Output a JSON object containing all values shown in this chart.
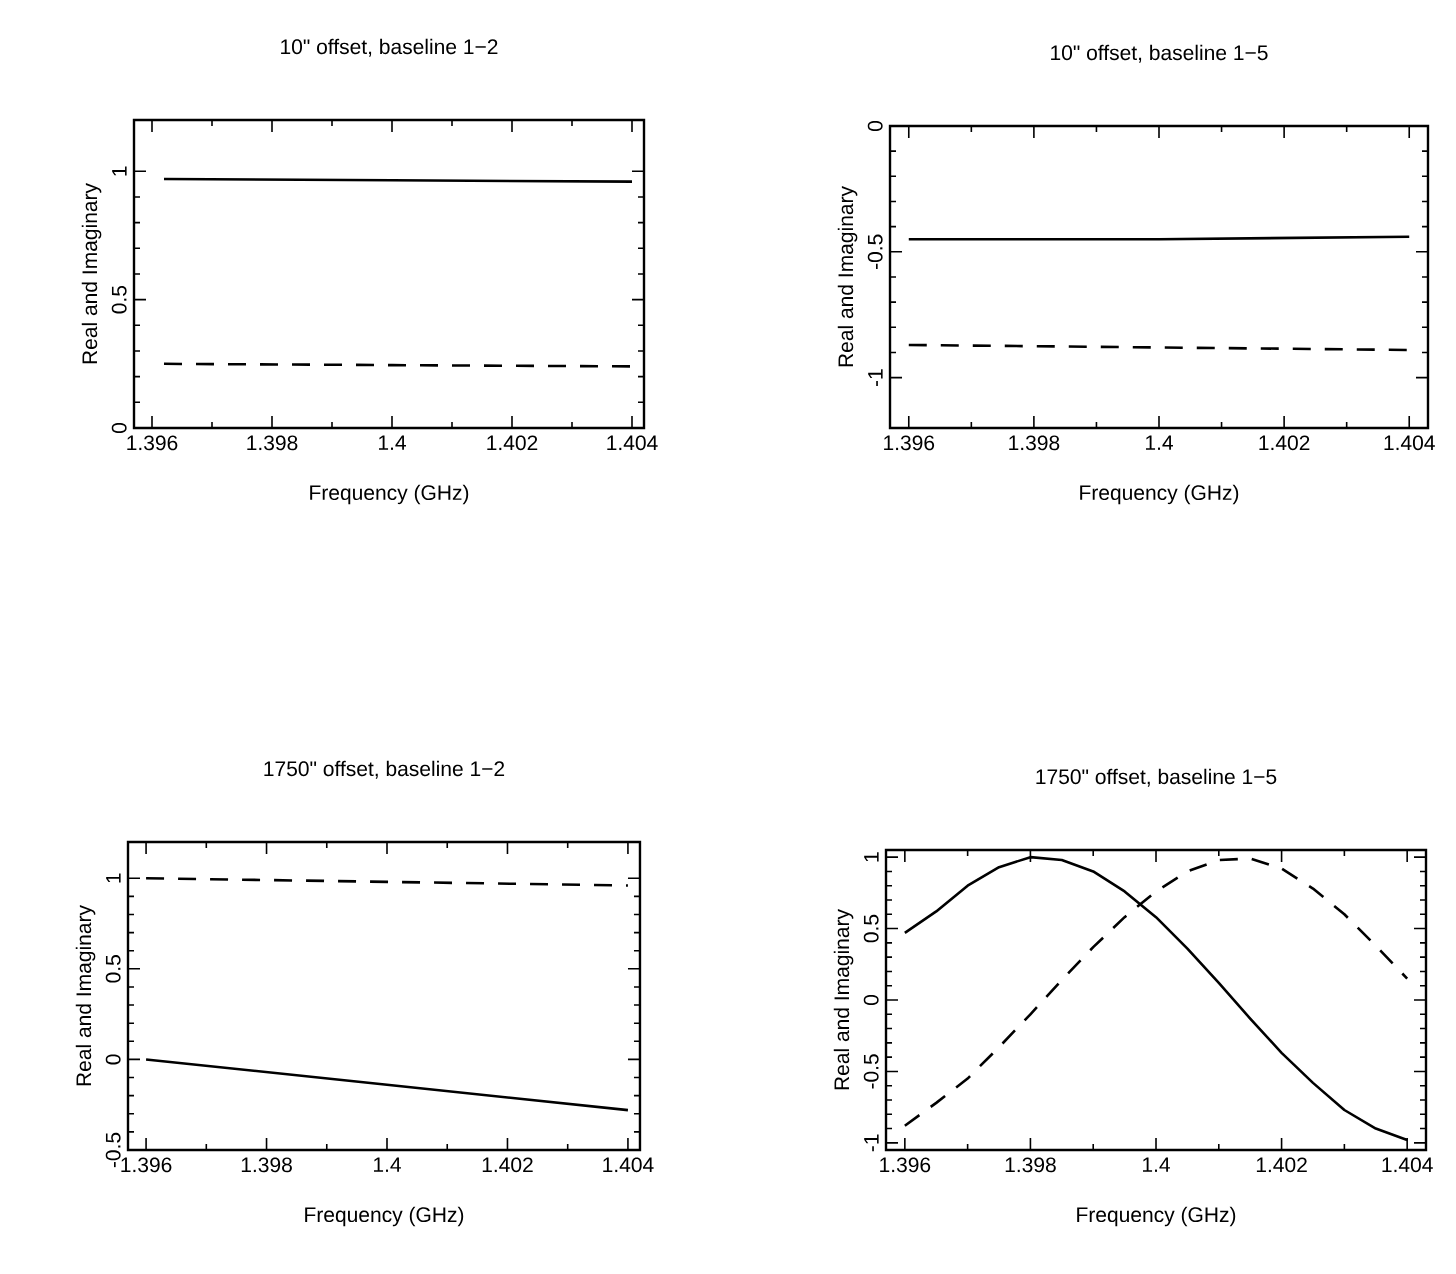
{
  "chart_data": [
    {
      "type": "line",
      "title": "10\" offset, baseline 1−2",
      "xlabel": "Frequency (GHz)",
      "ylabel": "Real and Imaginary",
      "xlim": [
        1.3957,
        1.4042
      ],
      "ylim": [
        0,
        1.2
      ],
      "xticks": [
        1.396,
        1.398,
        1.4,
        1.402,
        1.404
      ],
      "yticks": [
        0,
        0.5,
        1
      ],
      "series": [
        {
          "color": "#000000",
          "line_style": "solid",
          "x": [
            1.3962,
            1.4,
            1.404
          ],
          "values": [
            0.97,
            0.965,
            0.96
          ]
        },
        {
          "color": "#000000",
          "line_style": "dashed",
          "x": [
            1.3962,
            1.4,
            1.404
          ],
          "values": [
            0.25,
            0.245,
            0.24
          ]
        }
      ]
    },
    {
      "type": "line",
      "title": "10\" offset, baseline 1−5",
      "xlabel": "Frequency (GHz)",
      "ylabel": "Real and Imaginary",
      "xlim": [
        1.3957,
        1.4043
      ],
      "ylim": [
        -1.2,
        0
      ],
      "xticks": [
        1.396,
        1.398,
        1.4,
        1.402,
        1.404
      ],
      "yticks": [
        -1,
        -0.5,
        0
      ],
      "series": [
        {
          "color": "#000000",
          "line_style": "solid",
          "x": [
            1.396,
            1.4,
            1.404
          ],
          "values": [
            -0.45,
            -0.45,
            -0.44
          ]
        },
        {
          "color": "#000000",
          "line_style": "dashed",
          "x": [
            1.396,
            1.4,
            1.404
          ],
          "values": [
            -0.87,
            -0.88,
            -0.89
          ]
        }
      ]
    },
    {
      "type": "line",
      "title": "1750\" offset, baseline 1−2",
      "xlabel": "Frequency (GHz)",
      "ylabel": "Real and Imaginary",
      "xlim": [
        1.3957,
        1.4042
      ],
      "ylim": [
        -0.5,
        1.2
      ],
      "xticks": [
        1.396,
        1.398,
        1.4,
        1.402,
        1.404
      ],
      "yticks": [
        -0.5,
        0,
        0.5,
        1
      ],
      "series": [
        {
          "color": "#000000",
          "line_style": "solid",
          "x": [
            1.396,
            1.4,
            1.404
          ],
          "values": [
            0,
            -0.14,
            -0.28
          ]
        },
        {
          "color": "#000000",
          "line_style": "dashed",
          "x": [
            1.396,
            1.4,
            1.404
          ],
          "values": [
            1.0,
            0.98,
            0.96
          ]
        }
      ]
    },
    {
      "type": "line",
      "title": "1750\" offset, baseline 1−5",
      "xlabel": "Frequency (GHz)",
      "ylabel": "Real and Imaginary",
      "xlim": [
        1.3957,
        1.4043
      ],
      "ylim": [
        -1.05,
        1.05
      ],
      "xticks": [
        1.396,
        1.398,
        1.4,
        1.402,
        1.404
      ],
      "yticks": [
        -1,
        -0.5,
        0,
        0.5,
        1
      ],
      "series": [
        {
          "color": "#000000",
          "line_style": "solid",
          "x": [
            1.396,
            1.3965,
            1.397,
            1.3975,
            1.398,
            1.3985,
            1.399,
            1.3995,
            1.4,
            1.4005,
            1.401,
            1.4015,
            1.402,
            1.4025,
            1.403,
            1.4035,
            1.404
          ],
          "values": [
            0.47,
            0.62,
            0.8,
            0.93,
            1.0,
            0.98,
            0.9,
            0.76,
            0.58,
            0.36,
            0.12,
            -0.13,
            -0.37,
            -0.58,
            -0.77,
            -0.9,
            -0.98
          ]
        },
        {
          "color": "#000000",
          "line_style": "dashed",
          "x": [
            1.396,
            1.3965,
            1.397,
            1.3975,
            1.398,
            1.3985,
            1.399,
            1.3995,
            1.4,
            1.4005,
            1.401,
            1.4015,
            1.402,
            1.4025,
            1.403,
            1.4035,
            1.404
          ],
          "values": [
            -0.88,
            -0.72,
            -0.55,
            -0.33,
            -0.1,
            0.14,
            0.37,
            0.58,
            0.76,
            0.9,
            0.98,
            0.99,
            0.92,
            0.78,
            0.6,
            0.38,
            0.15
          ]
        }
      ]
    }
  ]
}
